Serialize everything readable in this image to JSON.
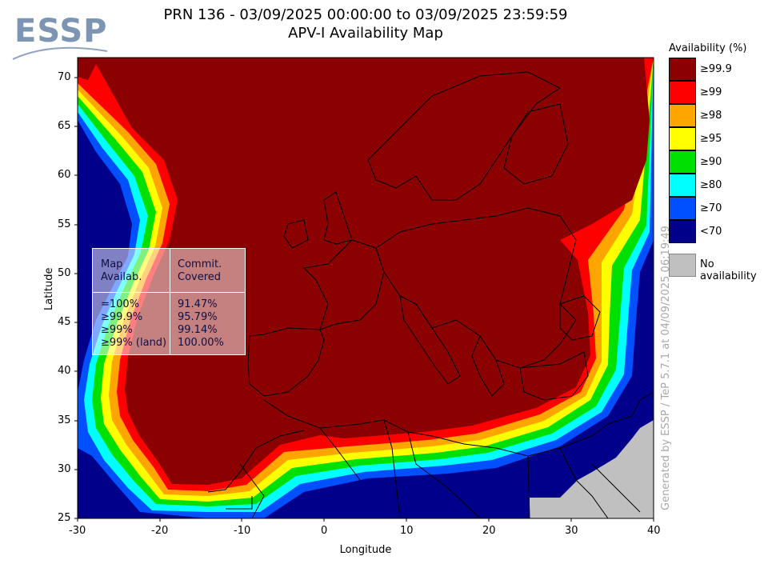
{
  "header": {
    "logo_text": "ESSP",
    "title_line1": "PRN 136 - 03/09/2025 00:00:00 to 03/09/2025 23:59:59",
    "title_line2": "APV-I Availability Map"
  },
  "axes": {
    "xlabel": "Longitude",
    "ylabel": "Latitude",
    "xlim": [
      -30,
      40
    ],
    "ylim": [
      25,
      72
    ],
    "x_ticks": [
      "-30",
      "-20",
      "-10",
      "0",
      "10",
      "20",
      "30",
      "40"
    ],
    "y_ticks": [
      "70",
      "65",
      "60",
      "55",
      "50",
      "45",
      "40",
      "35",
      "30",
      "25"
    ]
  },
  "legend": {
    "title": "Availability (%)",
    "items": [
      {
        "label": "≥99.9",
        "color": "#8b0000"
      },
      {
        "label": "≥99",
        "color": "#ff0000"
      },
      {
        "label": "≥98",
        "color": "#ffa500"
      },
      {
        "label": "≥95",
        "color": "#ffff00"
      },
      {
        "label": "≥90",
        "color": "#00e000"
      },
      {
        "label": "≥80",
        "color": "#00ffff"
      },
      {
        "label": "≥70",
        "color": "#0050ff"
      },
      {
        "label": "<70",
        "color": "#00008b"
      }
    ],
    "no_availability": {
      "label": "No availability",
      "color": "#c0c0c0"
    }
  },
  "stats": {
    "col1_header": [
      "Map",
      "Availab."
    ],
    "col2_header": [
      "Commit.",
      "Covered"
    ],
    "rows": [
      {
        "label": "=100%",
        "value": "91.47%"
      },
      {
        "label": "≥99.9%",
        "value": "95.79%"
      },
      {
        "label": "≥99%",
        "value": "99.14%"
      },
      {
        "label": "≥99% (land)",
        "value": "100.00%"
      }
    ]
  },
  "footer": {
    "generated": "Generated by ESSP / TeP 5.7.1 at 04/09/2025 06:19:49"
  }
}
